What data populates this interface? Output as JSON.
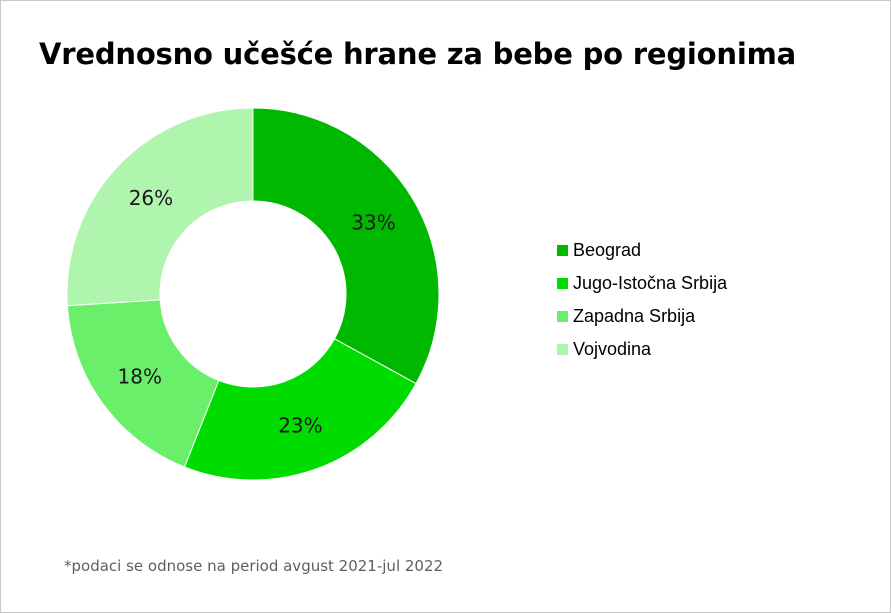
{
  "title": "Vrednosno učešće hrane za bebe po regionima",
  "footnote": "*podaci se odnose na period avgust 2021-jul 2022",
  "chart_data": {
    "type": "pie",
    "variant": "donut",
    "title": "Vrednosno učešće hrane za bebe po regionima",
    "categories": [
      "Beograd",
      "Jugo-Istočna Srbija",
      "Zapadna Srbija",
      "Vojvodina"
    ],
    "values": [
      33,
      23,
      18,
      26
    ],
    "labels": [
      "33%",
      "23%",
      "18%",
      "26%"
    ],
    "colors": [
      "#00b800",
      "#00dc00",
      "#6aef6a",
      "#aff5ae"
    ],
    "legend_position": "right"
  }
}
